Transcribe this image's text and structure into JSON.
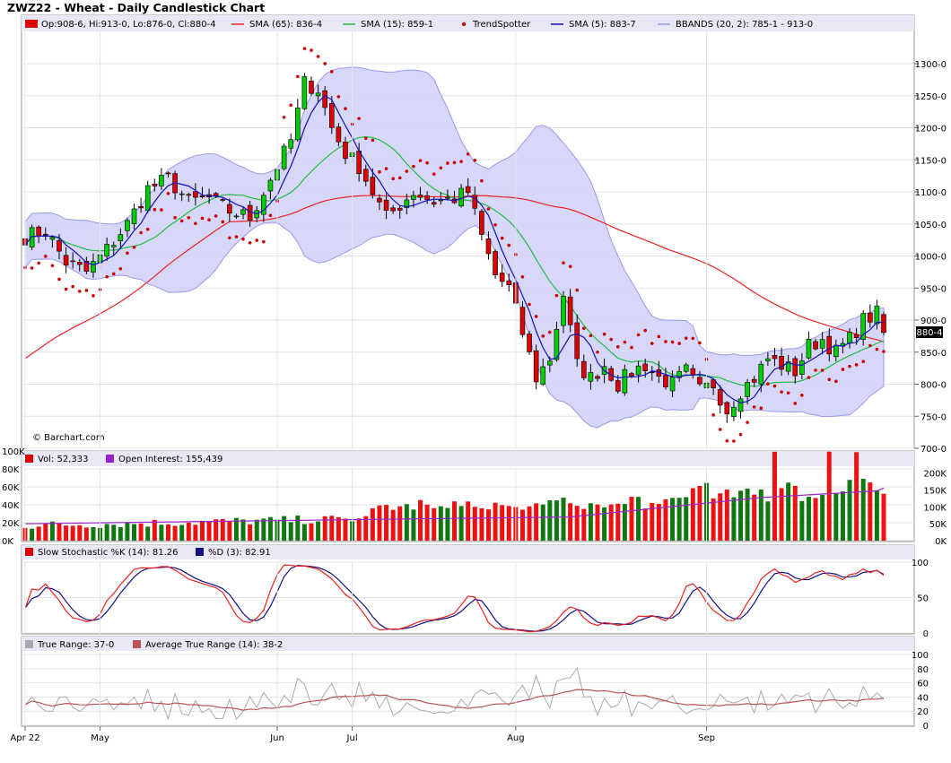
{
  "title": "ZWZ22 - Wheat - Daily Candlestick Chart",
  "watermark": "© Barchart.com",
  "colors": {
    "up": "#00cc00",
    "down": "#dd0000",
    "sma65": "#ee2222",
    "sma15": "#22bb44",
    "sma5": "#1111bb",
    "trend": "#cc0000",
    "bband_fill": "#d0d0f8",
    "bband_line": "#9999ee",
    "vol_up": "#117711",
    "vol_down": "#ee1111",
    "oi": "#9922cc",
    "stoch_k": "#ee2222",
    "stoch_d": "#111188",
    "tr": "#aaaaaa",
    "atr": "#bb5555",
    "panel_header": "#e8e8f6"
  },
  "legend": {
    "price": "Op:908-6, Hi:913-0, Lo:876-0, Cl:880-4",
    "sma65": "SMA (65): 836-4",
    "sma15": "SMA (15): 859-1",
    "trend": "TrendSpotter",
    "sma5": "SMA (5): 883-7",
    "bbands": "BBANDS (20, 2): 785-1 - 913-0",
    "vol": "Vol: 52,333",
    "oi": "Open Interest: 155,439",
    "stochk": "Slow Stochastic %K (14): 81.26",
    "stochd": "%D (3): 82.91",
    "tr": "True Range: 37-0",
    "atr": "Average True Range (14): 38-2"
  },
  "last_price_label": "880-4",
  "x_labels": [
    "Apr 22",
    "May",
    "Jun",
    "Jul",
    "Aug",
    "Sep"
  ],
  "price_ticks": [
    "1300-0",
    "1250-0",
    "1200-0",
    "1150-0",
    "1100-0",
    "1050-0",
    "1000-0",
    "950-0",
    "900-0",
    "850-0",
    "800-0",
    "750-0",
    "700-0"
  ],
  "vol_ticks_left": [
    "100K",
    "80K",
    "60K",
    "40K",
    "20K",
    "0K"
  ],
  "vol_ticks_right": [
    "200K",
    "150K",
    "100K",
    "50K",
    "0K"
  ],
  "stoch_ticks": [
    "100",
    "50",
    "0"
  ],
  "tr_ticks": [
    "100",
    "80",
    "60",
    "40",
    "20",
    "0"
  ],
  "chart_data": {
    "type": "candlestick",
    "instrument": "ZWZ22",
    "ylim": [
      700,
      1300
    ],
    "date_anchors": [
      {
        "date": "Apr 22",
        "index": 0
      },
      {
        "date": "May",
        "index": 11
      },
      {
        "date": "Jun",
        "index": 37
      },
      {
        "date": "Jul",
        "index": 48
      },
      {
        "date": "Aug",
        "index": 72
      },
      {
        "date": "Sep",
        "index": 100
      }
    ],
    "close_path": [
      [
        0,
        1030
      ],
      [
        3,
        1040
      ],
      [
        6,
        990
      ],
      [
        9,
        975
      ],
      [
        12,
        1010
      ],
      [
        15,
        1050
      ],
      [
        18,
        1105
      ],
      [
        21,
        1120
      ],
      [
        24,
        1085
      ],
      [
        27,
        1090
      ],
      [
        30,
        1070
      ],
      [
        33,
        1060
      ],
      [
        36,
        1120
      ],
      [
        39,
        1180
      ],
      [
        41,
        1270
      ],
      [
        43,
        1260
      ],
      [
        45,
        1200
      ],
      [
        47,
        1160
      ],
      [
        49,
        1140
      ],
      [
        51,
        1100
      ],
      [
        53,
        1060
      ],
      [
        55,
        1080
      ],
      [
        57,
        1100
      ],
      [
        60,
        1085
      ],
      [
        63,
        1090
      ],
      [
        65,
        1100
      ],
      [
        67,
        1030
      ],
      [
        69,
        970
      ],
      [
        71,
        950
      ],
      [
        73,
        880
      ],
      [
        75,
        810
      ],
      [
        77,
        840
      ],
      [
        79,
        940
      ],
      [
        81,
        830
      ],
      [
        83,
        810
      ],
      [
        85,
        830
      ],
      [
        87,
        800
      ],
      [
        89,
        820
      ],
      [
        91,
        830
      ],
      [
        93,
        810
      ],
      [
        95,
        800
      ],
      [
        97,
        820
      ],
      [
        99,
        790
      ],
      [
        101,
        800
      ],
      [
        103,
        760
      ],
      [
        105,
        790
      ],
      [
        107,
        810
      ],
      [
        109,
        840
      ],
      [
        111,
        830
      ],
      [
        113,
        820
      ],
      [
        115,
        860
      ],
      [
        117,
        870
      ],
      [
        119,
        850
      ],
      [
        121,
        870
      ],
      [
        123,
        900
      ],
      [
        125,
        910
      ],
      [
        126,
        880.5
      ]
    ],
    "last_bar": {
      "open": 908.75,
      "high": 913,
      "low": 876,
      "close": 880.5
    },
    "sma65_last": 836.5,
    "sma15_last": 859.125,
    "sma5_last": 883.875,
    "bbands_last": [
      785.125,
      913
    ],
    "volume_last": 52333,
    "open_interest_last": 155439,
    "stoch_k_last": 81.26,
    "stoch_d_last": 82.91,
    "true_range_last": 37,
    "atr_last": 38.25
  }
}
